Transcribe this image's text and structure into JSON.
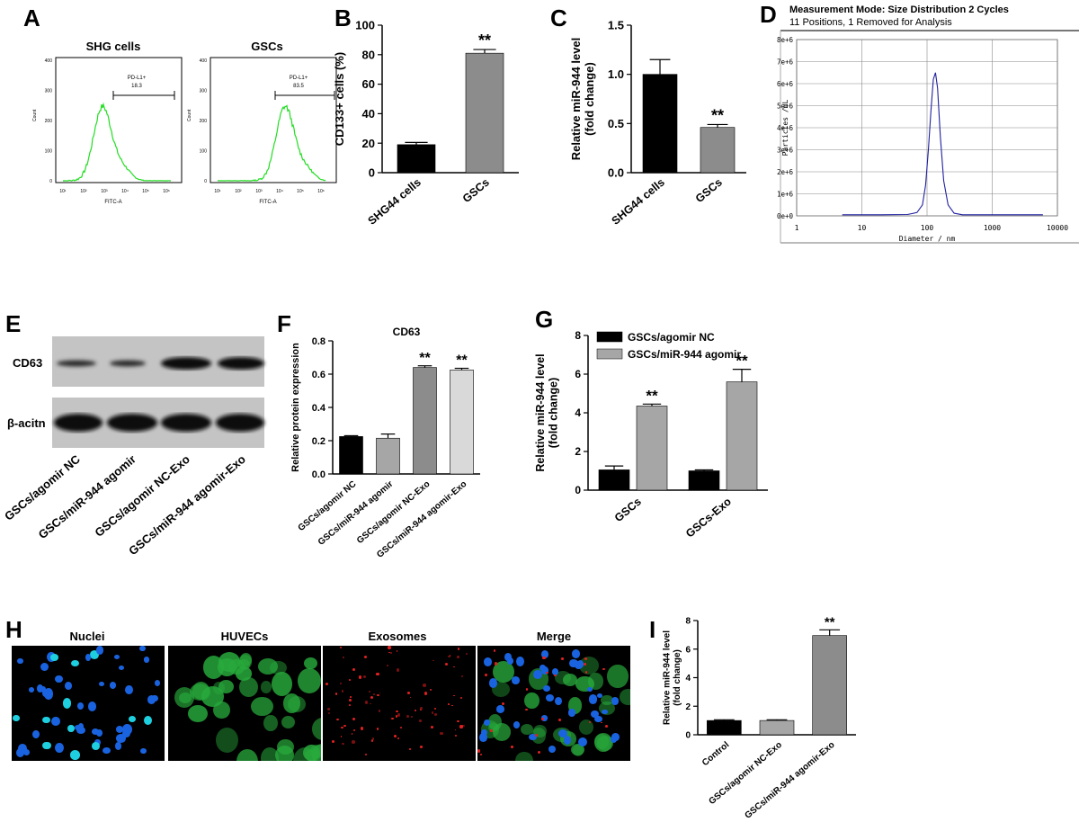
{
  "panels": {
    "A": {
      "letter": "A",
      "plots": [
        {
          "title": "SHG cells",
          "gate_label": "PD-L1+",
          "gate_value": "18.3",
          "ylabel": "Count",
          "xlabel": "FITC-A",
          "yticks": [
            "0",
            "100",
            "200",
            "300",
            "400"
          ],
          "xticks": [
            "10¹",
            "10²",
            "10³",
            "10⁴",
            "10⁵",
            "10⁶"
          ]
        },
        {
          "title": "GSCs",
          "gate_label": "PD-L1+",
          "gate_value": "83.5",
          "ylabel": "Count",
          "xlabel": "FITC-A",
          "yticks": [
            "0",
            "100",
            "200",
            "300",
            "400"
          ],
          "xticks": [
            "10¹",
            "10²",
            "10³",
            "10⁴",
            "10⁵",
            "10⁶"
          ]
        }
      ]
    },
    "B": {
      "letter": "B"
    },
    "C": {
      "letter": "C"
    },
    "D": {
      "letter": "D",
      "header": "Measurement Mode: Size Distribution 2 Cycles",
      "subheader": "11 Positions, 1 Removed for Analysis"
    },
    "E": {
      "letter": "E",
      "bands": [
        "CD63",
        "β-acitn"
      ],
      "lanes": [
        "GSCs/agomir NC",
        "GSCs/miR-944 agomir",
        "GSCs/agomir NC-Exo",
        "GSCs/miR-944 agomir-Exo"
      ]
    },
    "F": {
      "letter": "F"
    },
    "G": {
      "letter": "G"
    },
    "H": {
      "letter": "H",
      "images": [
        "Nuclei",
        "HUVECs",
        "Exosomes",
        "Merge"
      ]
    },
    "I": {
      "letter": "I"
    }
  },
  "chart_data": [
    {
      "id": "B",
      "type": "bar",
      "categories": [
        "SHG44 cells",
        "GSCs"
      ],
      "values": [
        19,
        81
      ],
      "errors": [
        1.5,
        2.5
      ],
      "colors": [
        "#000000",
        "#8c8c8c"
      ],
      "ylabel": "CD133+ cells (%)",
      "ylim": [
        0,
        100
      ],
      "yticks": [
        "0",
        "20",
        "40",
        "60",
        "80",
        "100"
      ],
      "annotations": [
        "",
        "**"
      ]
    },
    {
      "id": "C",
      "type": "bar",
      "categories": [
        "SHG44 cells",
        "GSCs"
      ],
      "values": [
        1.0,
        0.46
      ],
      "errors": [
        0.15,
        0.03
      ],
      "colors": [
        "#000000",
        "#8c8c8c"
      ],
      "ylabel": "Relative miR-944 level\n(fold change)",
      "ylim": [
        0,
        1.5
      ],
      "yticks": [
        "0.0",
        "0.5",
        "1.0",
        "1.5"
      ],
      "annotations": [
        "",
        "**"
      ]
    },
    {
      "id": "D",
      "type": "line",
      "xlabel": "Diameter / nm",
      "ylabel": "Particles /mL",
      "xscale": "log",
      "xticks": [
        "1",
        "10",
        "100",
        "1000",
        "10000"
      ],
      "yticks": [
        "0e+0",
        "1e+6",
        "2e+6",
        "3e+6",
        "4e+6",
        "5e+6",
        "6e+6",
        "7e+6",
        "8e+6"
      ],
      "ylim": [
        0,
        8000000
      ],
      "x": [
        5,
        20,
        50,
        70,
        85,
        95,
        105,
        115,
        125,
        135,
        145,
        160,
        180,
        210,
        260,
        350,
        600,
        6000
      ],
      "y": [
        50000,
        50000,
        60000,
        150000,
        500000,
        1400000,
        3000000,
        4800000,
        6200000,
        6500000,
        5800000,
        3600000,
        1600000,
        500000,
        120000,
        50000,
        50000,
        50000
      ]
    },
    {
      "id": "F",
      "type": "bar",
      "title": "CD63",
      "categories": [
        "GSCs/agomir NC",
        "GSCs/miR-944 agomir",
        "GSCs/agomir NC-Exo",
        "GSCs/miR-944 agomir-Exo"
      ],
      "values": [
        0.225,
        0.215,
        0.64,
        0.625
      ],
      "errors": [
        0.005,
        0.025,
        0.01,
        0.01
      ],
      "colors": [
        "#000000",
        "#a6a6a6",
        "#8c8c8c",
        "#d9d9d9"
      ],
      "ylabel": "Relative protein expression",
      "ylim": [
        0,
        0.8
      ],
      "yticks": [
        "0.0",
        "0.2",
        "0.4",
        "0.6",
        "0.8"
      ],
      "annotations": [
        "",
        "",
        "**",
        "**"
      ]
    },
    {
      "id": "G",
      "type": "bar",
      "categories": [
        "GSCs",
        "GSCs-Exo"
      ],
      "series": [
        {
          "name": "GSCs/agomir NC",
          "values": [
            1.05,
            1.0
          ],
          "errors": [
            0.2,
            0.05
          ],
          "color": "#000000"
        },
        {
          "name": "GSCs/miR-944 agomir",
          "values": [
            4.35,
            5.6
          ],
          "errors": [
            0.1,
            0.65
          ],
          "color": "#a6a6a6"
        }
      ],
      "annotations": [
        [
          "",
          ""
        ],
        [
          "**",
          "**"
        ]
      ],
      "ylabel": "Relative miR-944 level\n(fold change)",
      "ylim": [
        0,
        8
      ],
      "yticks": [
        "0",
        "2",
        "4",
        "6",
        "8"
      ],
      "legend": "top-left"
    },
    {
      "id": "I",
      "type": "bar",
      "categories": [
        "Control",
        "GSCs/agomir NC-Exo",
        "GSCs/miR-944 agomir-Exo"
      ],
      "values": [
        1.0,
        1.0,
        6.95
      ],
      "errors": [
        0.05,
        0.05,
        0.4
      ],
      "colors": [
        "#000000",
        "#a6a6a6",
        "#8c8c8c"
      ],
      "ylabel": "Relative miR-944 level\n(fold change)",
      "ylim": [
        0,
        8
      ],
      "yticks": [
        "0",
        "2",
        "4",
        "6",
        "8"
      ],
      "annotations": [
        "",
        "",
        "**"
      ]
    }
  ]
}
